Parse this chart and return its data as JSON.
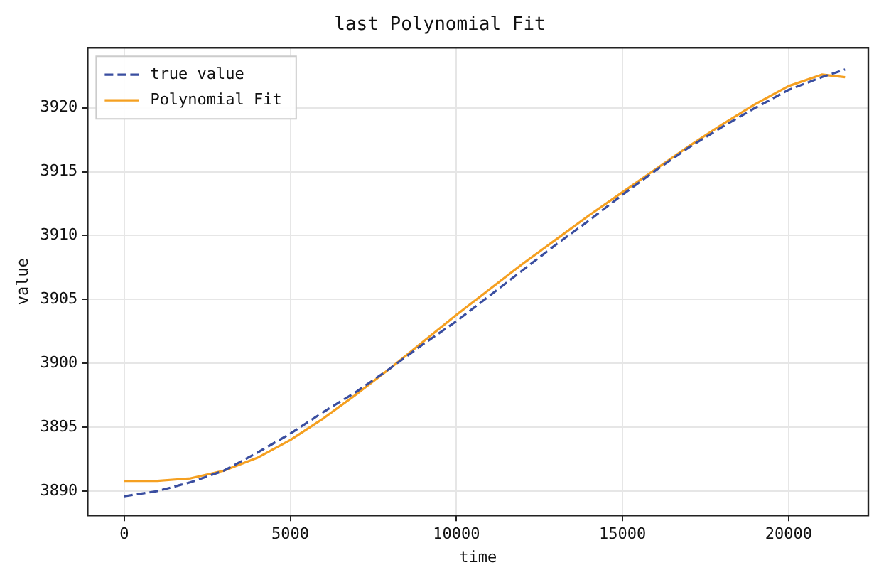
{
  "chart_data": {
    "type": "line",
    "title": "last Polynomial Fit",
    "xlabel": "time",
    "ylabel": "value",
    "xlim": [
      -1100,
      22400
    ],
    "xticks": [
      0,
      5000,
      10000,
      15000,
      20000
    ],
    "ylim": [
      3888.1,
      3924.7
    ],
    "yticks": [
      3890,
      3895,
      3900,
      3905,
      3910,
      3915,
      3920
    ],
    "grid": true,
    "legend": "top left",
    "series": [
      {
        "name": "true value",
        "color": "#3a4ea0",
        "line_style": "dashed",
        "x": [
          0,
          1000,
          2000,
          3000,
          4000,
          5000,
          6000,
          7000,
          8000,
          9000,
          10000,
          11000,
          12000,
          13000,
          14000,
          15000,
          16000,
          17000,
          18000,
          19000,
          20000,
          21000,
          21700
        ],
        "values": [
          3889.6,
          3890.0,
          3890.7,
          3891.6,
          3893.0,
          3894.5,
          3896.2,
          3897.8,
          3899.6,
          3901.5,
          3903.3,
          3905.3,
          3907.3,
          3909.3,
          3911.2,
          3913.2,
          3915.1,
          3916.9,
          3918.5,
          3920.0,
          3921.4,
          3922.4,
          3923.0
        ]
      },
      {
        "name": "Polynomial Fit",
        "color": "#f5a021",
        "line_style": "solid",
        "x": [
          0,
          1000,
          2000,
          3000,
          4000,
          5000,
          6000,
          7000,
          8000,
          9000,
          10000,
          11000,
          12000,
          13000,
          14000,
          15000,
          16000,
          17000,
          18000,
          19000,
          20000,
          21000,
          21700
        ],
        "values": [
          3890.8,
          3890.8,
          3891.0,
          3891.6,
          3892.6,
          3894.0,
          3895.7,
          3897.6,
          3899.6,
          3901.7,
          3903.8,
          3905.8,
          3907.8,
          3909.7,
          3911.6,
          3913.4,
          3915.2,
          3917.0,
          3918.7,
          3920.3,
          3921.7,
          3922.6,
          3922.4
        ]
      }
    ]
  }
}
